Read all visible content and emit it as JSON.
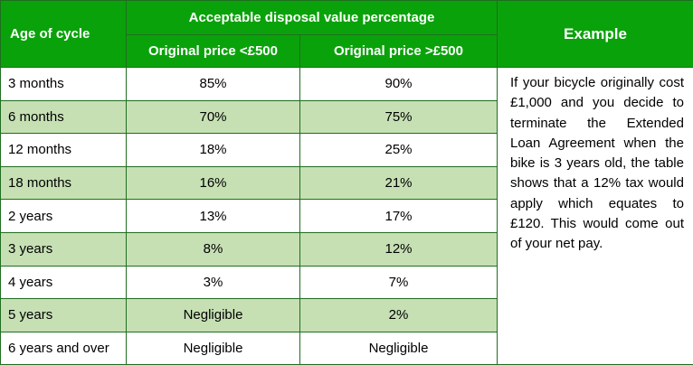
{
  "table": {
    "header": {
      "age_label": "Age of cycle",
      "group_label": "Acceptable disposal value percentage",
      "col_under_label": "Original price <£500",
      "col_over_label": "Original price >£500",
      "example_label": "Example"
    },
    "rows": [
      {
        "age": "3 months",
        "under": "85%",
        "over": "90%"
      },
      {
        "age": "6 months",
        "under": "70%",
        "over": "75%"
      },
      {
        "age": "12 months",
        "under": "18%",
        "over": "25%"
      },
      {
        "age": "18 months",
        "under": "16%",
        "over": "21%"
      },
      {
        "age": "2 years",
        "under": "13%",
        "over": "17%"
      },
      {
        "age": "3 years",
        "under": "8%",
        "over": "12%"
      },
      {
        "age": "4 years",
        "under": "3%",
        "over": "7%"
      },
      {
        "age": "5 years",
        "under": "Negligible",
        "over": "2%"
      },
      {
        "age": "6 years and over",
        "under": "Negligible",
        "over": "Negligible"
      }
    ],
    "example_text": "If your bicycle originally cost £1,000 and you decide to terminate the Extended Loan Agreement when the bike is 3 years old, the table shows that a 12% tax would apply which equates to £120.  This would come out of your net pay."
  },
  "colors": {
    "header_green": "#0aa20a",
    "band_green": "#c6e0b4",
    "border": "#1f6e1f"
  }
}
